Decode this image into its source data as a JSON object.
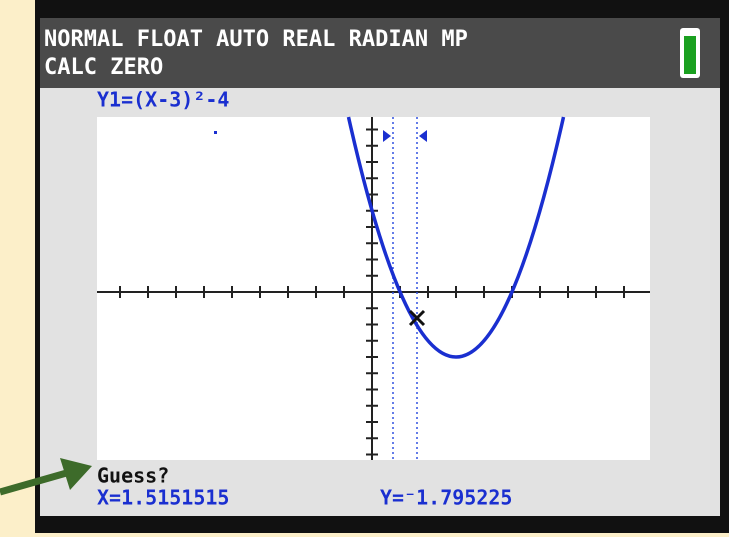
{
  "status": {
    "mode": "NORMAL FLOAT AUTO REAL RADIAN MP",
    "menu": "CALC ZERO"
  },
  "graph": {
    "equation": "Y1=(X-3)²-4"
  },
  "prompt": {
    "text": "Guess?",
    "x": "X=1.5151515",
    "y": "Y=⁻1.795225"
  }
}
